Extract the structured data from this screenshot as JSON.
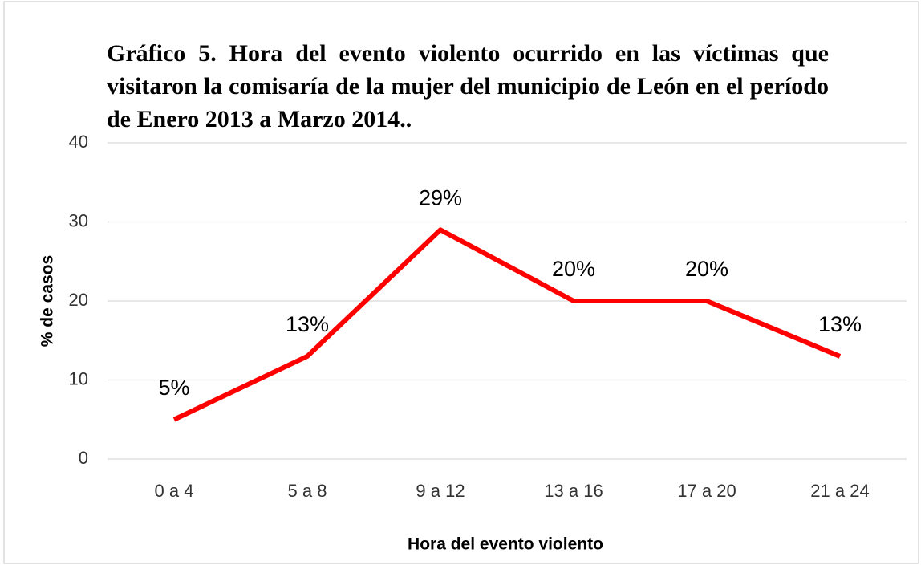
{
  "chart_data": {
    "type": "line",
    "title": "Gráfico 5. Hora del evento violento ocurrido en las víctimas que visitaron la  comisaría de la mujer del municipio de León en el período de Enero 2013 a Marzo 2014..",
    "x_label": "Hora del evento violento",
    "y_label": "% de casos",
    "categories": [
      "0 a 4",
      "5 a 8",
      "9 a 12",
      "13 a 16",
      "17 a 20",
      "21 a 24"
    ],
    "values": [
      5,
      13,
      29,
      20,
      20,
      13
    ],
    "value_labels": [
      "5%",
      "13%",
      "29%",
      "20%",
      "20%",
      "13%"
    ],
    "color": "#ff0000",
    "ylim": [
      0,
      40
    ],
    "yticks": [
      0,
      10,
      20,
      30,
      40
    ],
    "grid": true
  }
}
